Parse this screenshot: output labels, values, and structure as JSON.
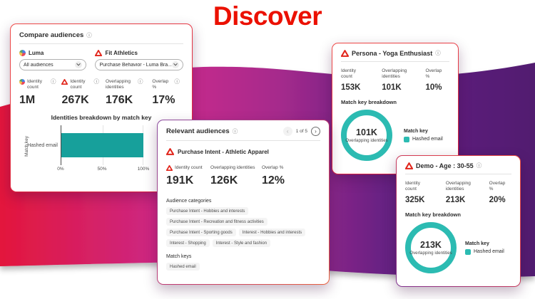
{
  "title": "Discover",
  "icons": {
    "info": "ⓘ",
    "chevron_left": "‹",
    "chevron_right": "›"
  },
  "colors": {
    "accent_red": "#EB1000",
    "bar_teal": "#17A09B",
    "ring_teal": "#2CBBB2",
    "ribbon_red": "#E3173C",
    "ribbon_magenta": "#C9298C",
    "ribbon_purple": "#53206E"
  },
  "compare": {
    "header": "Compare audiences",
    "luma_label": "Luma",
    "luma_dropdown": "All audiences",
    "fit_label": "Fit Athletics",
    "fit_dropdown": "Purchase Behavior - Luma Bra...",
    "metrics": [
      {
        "label": "Identity count",
        "value": "1M"
      },
      {
        "label": "Identity count",
        "value": "267K"
      },
      {
        "label": "Overlapping identities",
        "value": "176K"
      },
      {
        "label": "Overlap %",
        "value": "17%"
      }
    ],
    "chart": {
      "type": "bar",
      "title": "Identities breakdown by match key",
      "y_axis_label": "Match key",
      "bar_label": "Hashed email",
      "pct": 100,
      "ticks": [
        "0%",
        "50%",
        "100%"
      ]
    }
  },
  "relevant": {
    "header": "Relevant audiences",
    "pagination": "1 of 5",
    "audience": "Purchase Intent - Athletic Apparel",
    "metrics": [
      {
        "label": "Identity count",
        "value": "191K"
      },
      {
        "label": "Overlapping identities",
        "value": "126K"
      },
      {
        "label": "Overlap %",
        "value": "12%"
      }
    ],
    "categories_label": "Audience categories",
    "categories": [
      "Purchase Intent - Hobbies and interests",
      "Purchase Intent - Recreation and fitness activities",
      "Purchase Intent - Sporting goods",
      "Interest - Hobbies and interests",
      "Interest - Shopping",
      "Interest - Style and fashion"
    ],
    "match_keys_label": "Match keys",
    "match_key": "Hashed email"
  },
  "persona": {
    "header": "Persona - Yoga Enthusiast",
    "metrics": [
      {
        "label": "Identity count",
        "value": "153K"
      },
      {
        "label": "Overlapping identities",
        "value": "101K"
      },
      {
        "label": "Overlap %",
        "value": "10%"
      }
    ],
    "breakdown_label": "Match key breakdown",
    "donut": {
      "value": "101K",
      "label": "Overlapping identities",
      "pct": 100
    },
    "legend_title": "Match key",
    "legend_item": "Hashed email"
  },
  "demo": {
    "header": "Demo - Age : 30-55",
    "metrics": [
      {
        "label": "Identity count",
        "value": "325K"
      },
      {
        "label": "Overlapping identities",
        "value": "213K"
      },
      {
        "label": "Overlap %",
        "value": "20%"
      }
    ],
    "breakdown_label": "Match key breakdown",
    "donut": {
      "value": "213K",
      "label": "Overlapping identities",
      "pct": 100
    },
    "legend_title": "Match key",
    "legend_item": "Hashed email"
  }
}
